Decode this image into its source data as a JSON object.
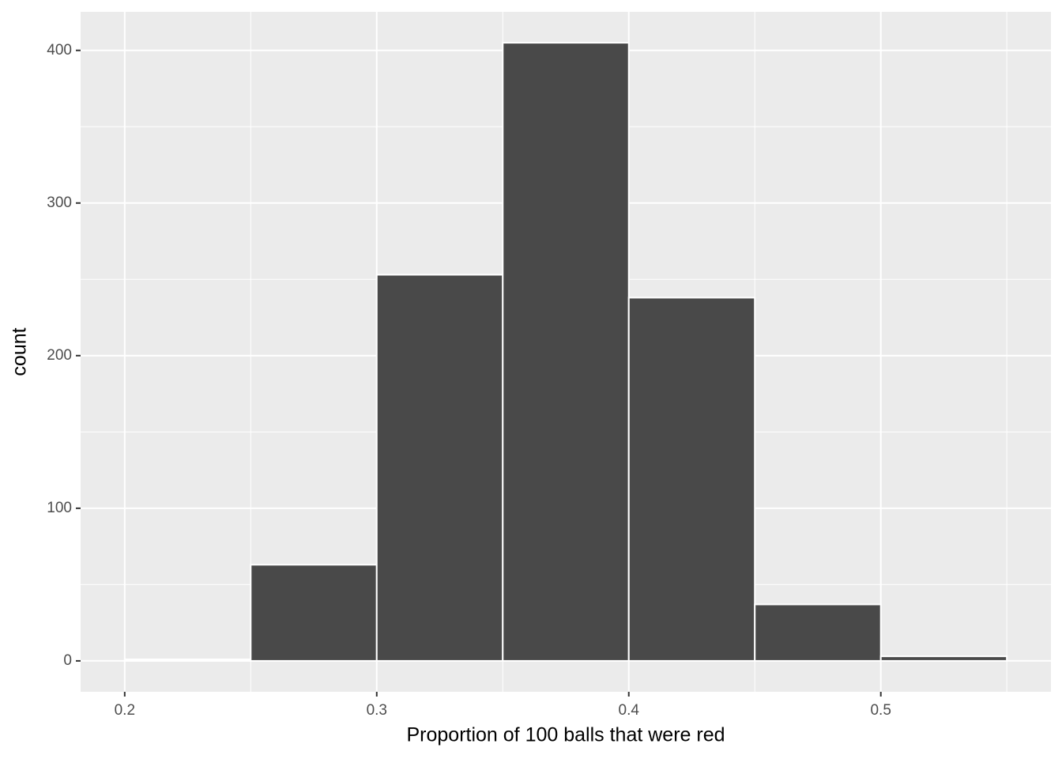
{
  "chart_data": {
    "type": "histogram",
    "x_label": "Proportion of 100 balls that were red",
    "y_label": "count",
    "bins": [
      0.2,
      0.25,
      0.3,
      0.35,
      0.4,
      0.45,
      0.5,
      0.55
    ],
    "values": [
      1,
      63,
      253,
      405,
      238,
      37,
      3
    ],
    "color": "#494949",
    "xlim": [
      0.1825,
      0.5675
    ],
    "ylim": [
      -20.25,
      425.25
    ],
    "xticks": [
      0.2,
      0.3,
      0.4,
      0.5
    ],
    "yticks": [
      0,
      100,
      200,
      300,
      400
    ],
    "x_minor_grid": [
      0.25,
      0.35,
      0.45,
      0.55
    ],
    "y_minor_grid": [
      50,
      150,
      250,
      350
    ],
    "grid": true
  }
}
